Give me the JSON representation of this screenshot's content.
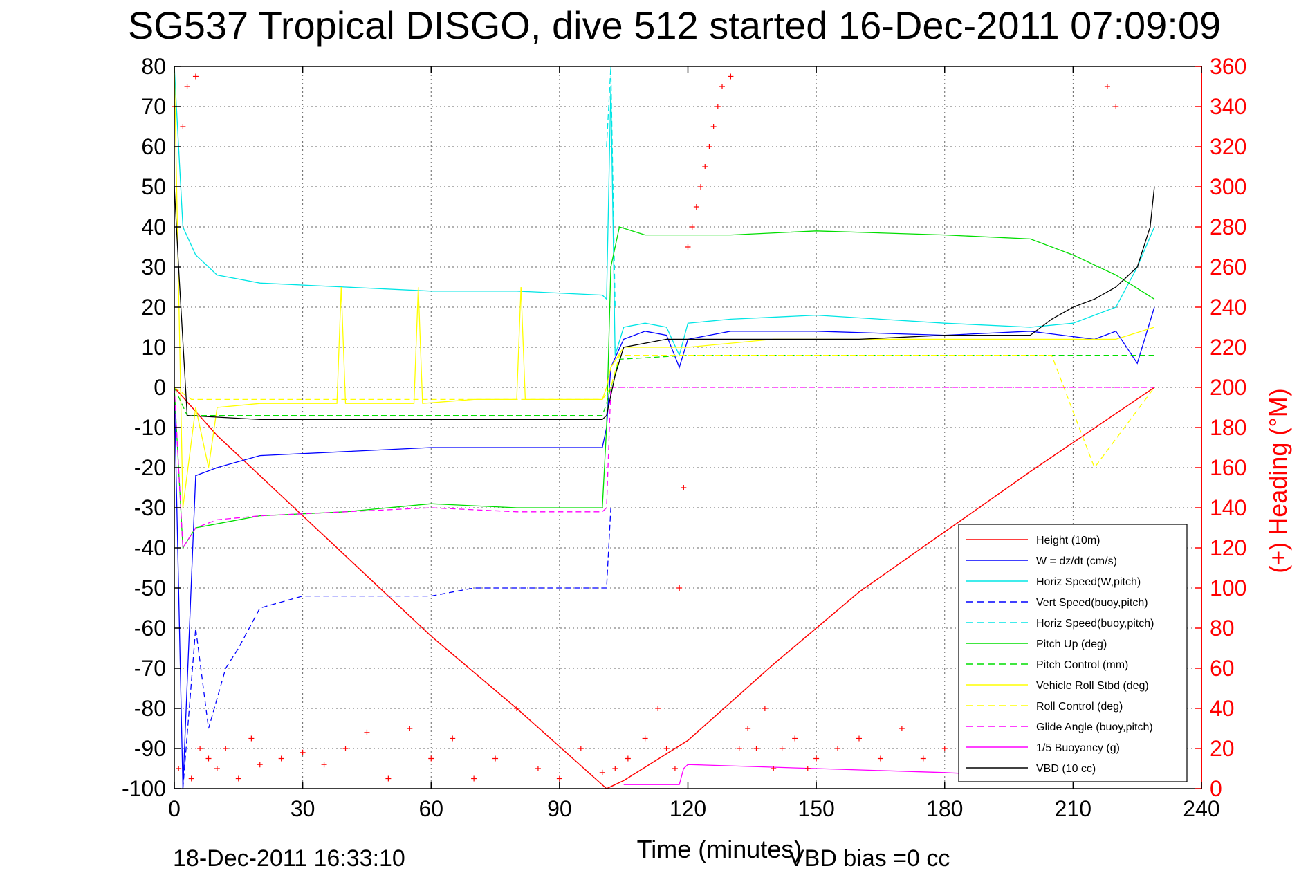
{
  "chart_data": {
    "type": "line",
    "title": "SG537 Tropical DISGO, dive 512 started 16-Dec-2011 07:09:09",
    "xlabel": "Time (minutes)",
    "ylabel_right": "(+) Heading (°M)",
    "footer_left": "18-Dec-2011 16:33:10",
    "footer_right": "VBD bias =0 cc",
    "xlim": [
      0,
      240
    ],
    "ylim": [
      -100,
      80
    ],
    "ylim_right": [
      0,
      360
    ],
    "xticks": [
      "0",
      "30",
      "60",
      "90",
      "120",
      "150",
      "180",
      "210",
      "240"
    ],
    "yticks": [
      "80",
      "70",
      "60",
      "50",
      "40",
      "30",
      "20",
      "10",
      "0",
      "-10",
      "-20",
      "-30",
      "-40",
      "-50",
      "-60",
      "-70",
      "-80",
      "-90",
      "-100"
    ],
    "yticks_right": [
      "360",
      "340",
      "320",
      "300",
      "280",
      "260",
      "240",
      "220",
      "200",
      "180",
      "160",
      "140",
      "120",
      "100",
      "80",
      "60",
      "40",
      "20",
      "0"
    ],
    "grid": true,
    "legend_position": "bottom-right",
    "colors": {
      "axis_right": "#ff0000"
    },
    "series": [
      {
        "name": "Height (10m)",
        "color": "#ff0000",
        "dash": "solid",
        "x": [
          0,
          10,
          20,
          40,
          60,
          80,
          101,
          105,
          120,
          140,
          160,
          180,
          200,
          229
        ],
        "y": [
          0,
          -12,
          -22,
          -42,
          -62,
          -80,
          -100,
          -98,
          -88,
          -69,
          -51,
          -36,
          -21,
          0
        ]
      },
      {
        "name": "W = dz/dt (cm/s)",
        "color": "#0000ff",
        "dash": "solid",
        "x": [
          0,
          2,
          5,
          10,
          20,
          40,
          60,
          80,
          100,
          101,
          102,
          105,
          110,
          115,
          118,
          120,
          130,
          150,
          180,
          200,
          215,
          220,
          225,
          229
        ],
        "y": [
          0,
          -100,
          -22,
          -20,
          -17,
          -16,
          -15,
          -15,
          -15,
          -10,
          5,
          12,
          14,
          13,
          5,
          12,
          14,
          14,
          13,
          14,
          12,
          14,
          6,
          20
        ]
      },
      {
        "name": "Horiz Speed(W,pitch)",
        "color": "#00e5e5",
        "dash": "solid",
        "x": [
          0,
          2,
          5,
          10,
          20,
          40,
          60,
          80,
          100,
          101,
          102,
          103,
          105,
          110,
          115,
          118,
          120,
          130,
          150,
          180,
          200,
          210,
          220,
          225,
          229
        ],
        "y": [
          80,
          40,
          33,
          28,
          26,
          25,
          24,
          24,
          23,
          22,
          75,
          8,
          15,
          16,
          15,
          8,
          16,
          17,
          18,
          16,
          15,
          16,
          20,
          30,
          40
        ]
      },
      {
        "name": "Vert Speed(buoy,pitch)",
        "color": "#0000ff",
        "dash": "dashed",
        "x": [
          0,
          2,
          5,
          8,
          12,
          15,
          20,
          30,
          40,
          50,
          60,
          70,
          80,
          90,
          101,
          102
        ],
        "y": [
          -100,
          -100,
          -60,
          -85,
          -70,
          -65,
          -55,
          -52,
          -52,
          -52,
          -52,
          -50,
          -50,
          -50,
          -50,
          -30
        ]
      },
      {
        "name": "Horiz Speed(buoy,pitch)",
        "color": "#00e5e5",
        "dash": "dashed",
        "x": [
          101,
          102,
          103
        ],
        "y": [
          60,
          80,
          20
        ]
      },
      {
        "name": "Pitch Up (deg)",
        "color": "#00dd00",
        "dash": "solid",
        "x": [
          0,
          2,
          5,
          10,
          20,
          40,
          60,
          80,
          100,
          101,
          102,
          104,
          110,
          130,
          150,
          180,
          200,
          210,
          220,
          229
        ],
        "y": [
          0,
          -40,
          -35,
          -34,
          -32,
          -31,
          -29,
          -30,
          -30,
          -10,
          30,
          40,
          38,
          38,
          39,
          38,
          37,
          33,
          28,
          22
        ]
      },
      {
        "name": "Pitch Control (mm)",
        "color": "#00dd00",
        "dash": "dashed",
        "x": [
          0,
          3,
          20,
          60,
          100,
          101,
          102,
          104,
          120,
          160,
          200,
          229
        ],
        "y": [
          0,
          -7,
          -7,
          -7,
          -7,
          -4,
          0,
          7,
          8,
          8,
          8,
          8
        ]
      },
      {
        "name": "Vehicle Roll Stbd (deg)",
        "color": "#ffff00",
        "dash": "solid",
        "x": [
          0,
          2,
          5,
          8,
          10,
          20,
          38,
          39,
          40,
          50,
          56,
          57,
          58,
          70,
          80,
          81,
          82,
          100,
          101,
          102,
          105,
          120,
          140,
          141,
          142,
          160,
          200,
          210,
          220,
          229
        ],
        "y": [
          80,
          -30,
          -5,
          -20,
          -5,
          -4,
          -4,
          25,
          -4,
          -4,
          -4,
          25,
          -4,
          -3,
          -3,
          25,
          -3,
          -3,
          0,
          5,
          10,
          10,
          12,
          12,
          12,
          12,
          12,
          12,
          12,
          15
        ]
      },
      {
        "name": "Roll Control (deg)",
        "color": "#ffff00",
        "dash": "dashed",
        "x": [
          0,
          4,
          20,
          60,
          100,
          102,
          104,
          130,
          150,
          180,
          205,
          215,
          229
        ],
        "y": [
          0,
          -3,
          -3,
          -3,
          -3,
          0,
          8,
          8,
          8,
          8,
          8,
          -20,
          0
        ]
      },
      {
        "name": "Glide Angle (buoy,pitch)",
        "color": "#ff00ff",
        "dash": "dashed",
        "x": [
          0,
          2,
          5,
          10,
          20,
          40,
          60,
          80,
          100,
          101,
          102,
          229
        ],
        "y": [
          0,
          -40,
          -35,
          -33,
          -32,
          -31,
          -30,
          -31,
          -31,
          -30,
          0,
          0
        ]
      },
      {
        "name": "1/5 Buoyancy (g)",
        "color": "#ff00ff",
        "dash": "solid",
        "x": [
          105,
          118,
          119,
          120,
          150,
          180,
          200,
          215
        ],
        "y": [
          -99,
          -99,
          -95,
          -94,
          -95,
          -96,
          -97,
          -98
        ]
      },
      {
        "name": "VBD (10 cc)",
        "color": "#000000",
        "dash": "solid",
        "x": [
          0,
          1,
          3,
          20,
          60,
          100,
          101,
          103,
          105,
          115,
          130,
          160,
          180,
          200,
          205,
          210,
          215,
          220,
          225,
          228,
          229
        ],
        "y": [
          50,
          30,
          -7,
          -8,
          -8,
          -8,
          -7,
          3,
          10,
          12,
          12,
          12,
          13,
          13,
          17,
          20,
          22,
          25,
          30,
          40,
          50
        ]
      }
    ],
    "heading_series": {
      "name": "(+) Heading",
      "color": "#ff0000",
      "marker": "+",
      "x": [
        0,
        1,
        2,
        3,
        4,
        5,
        6,
        8,
        10,
        12,
        15,
        18,
        20,
        25,
        30,
        35,
        40,
        45,
        50,
        55,
        60,
        65,
        70,
        75,
        80,
        85,
        90,
        95,
        100,
        103,
        106,
        110,
        113,
        115,
        117,
        118,
        119,
        120,
        121,
        122,
        123,
        124,
        125,
        126,
        127,
        128,
        130,
        132,
        134,
        136,
        138,
        140,
        142,
        145,
        148,
        150,
        155,
        160,
        165,
        170,
        175,
        180,
        185,
        190,
        195,
        200,
        205,
        210,
        215,
        218,
        220,
        225
      ],
      "y": [
        340,
        10,
        330,
        350,
        5,
        355,
        20,
        15,
        10,
        20,
        5,
        25,
        12,
        15,
        18,
        12,
        20,
        28,
        5,
        30,
        15,
        25,
        5,
        15,
        40,
        10,
        5,
        20,
        8,
        10,
        15,
        25,
        40,
        20,
        10,
        100,
        150,
        270,
        280,
        290,
        300,
        310,
        320,
        330,
        340,
        350,
        355,
        20,
        30,
        20,
        40,
        10,
        20,
        25,
        10,
        15,
        20,
        25,
        15,
        30,
        15,
        20,
        10,
        5,
        15,
        20,
        10,
        5,
        15,
        350,
        340,
        20
      ]
    }
  }
}
